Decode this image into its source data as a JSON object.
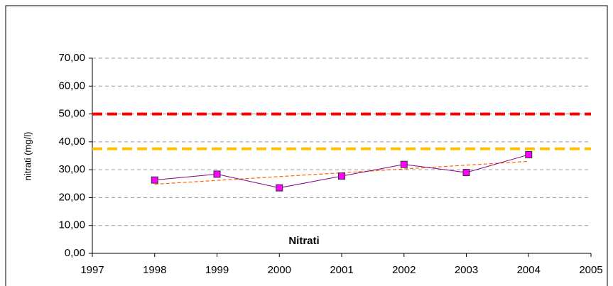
{
  "chart_data": {
    "type": "line",
    "y_label": "nitrati (mg/l)",
    "annotation": "Nitrati",
    "x": [
      1998,
      1999,
      2000,
      2001,
      2002,
      2003,
      2004
    ],
    "series": [
      {
        "color": "#800080",
        "marker_color": "#ff00ff",
        "values": [
          26.3,
          28.4,
          23.5,
          27.7,
          31.9,
          29.0,
          35.4
        ]
      }
    ],
    "trend": {
      "color": "#ff6600",
      "x": [
        1998,
        2004
      ],
      "values": [
        24.8,
        33.0
      ]
    },
    "reference_lines": [
      {
        "value": 50,
        "color": "#ff0000"
      },
      {
        "value": 37.5,
        "color": "#ffc000"
      }
    ],
    "xlim": [
      1997,
      2005
    ],
    "xticks": [
      1997,
      1998,
      1999,
      2000,
      2001,
      2002,
      2003,
      2004,
      2005
    ],
    "ylim": [
      0,
      70
    ],
    "yticks": [
      {
        "value": 0,
        "label": "0,00"
      },
      {
        "value": 10,
        "label": "10,00"
      },
      {
        "value": 20,
        "label": "20,00"
      },
      {
        "value": 30,
        "label": "30,00"
      },
      {
        "value": 40,
        "label": "40,00"
      },
      {
        "value": 50,
        "label": "50,00"
      },
      {
        "value": 60,
        "label": "60,00"
      },
      {
        "value": 70,
        "label": "70,00"
      }
    ],
    "grid": true
  }
}
